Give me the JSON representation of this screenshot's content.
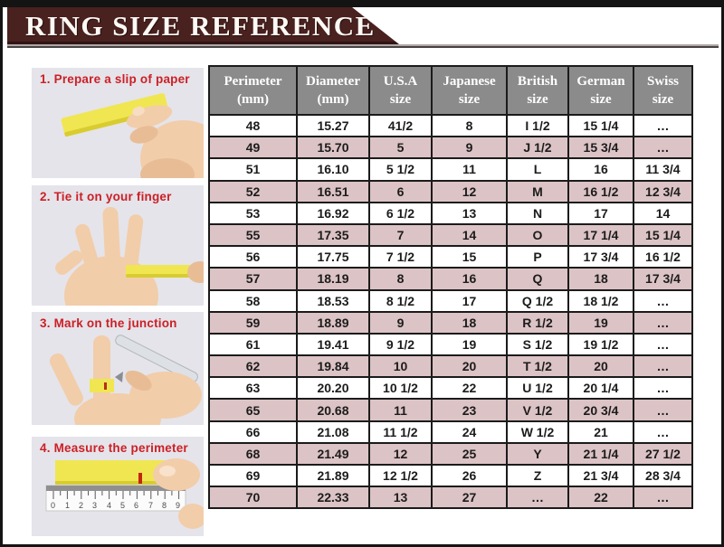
{
  "title": "RING SIZE REFERENCE",
  "steps": [
    {
      "label": "1. Prepare a slip of paper"
    },
    {
      "label": "2. Tie it on your finger"
    },
    {
      "label": "3. Mark on the junction"
    },
    {
      "label": "4. Measure the perimeter",
      "ruler_numbers": [
        "0",
        "1",
        "2",
        "3",
        "4",
        "5",
        "6",
        "7",
        "8",
        "9"
      ]
    }
  ],
  "table": {
    "headers": [
      {
        "line1": "Perimeter",
        "line2": "(mm)"
      },
      {
        "line1": "Diameter",
        "line2": "(mm)"
      },
      {
        "line1": "U.S.A",
        "line2": "size"
      },
      {
        "line1": "Japanese",
        "line2": "size"
      },
      {
        "line1": "British",
        "line2": "size"
      },
      {
        "line1": "German",
        "line2": "size"
      },
      {
        "line1": "Swiss",
        "line2": "size"
      }
    ],
    "rows": [
      [
        "48",
        "15.27",
        "41/2",
        "8",
        "I 1/2",
        "15 1/4",
        "…"
      ],
      [
        "49",
        "15.70",
        "5",
        "9",
        "J 1/2",
        "15 3/4",
        "…"
      ],
      [
        "51",
        "16.10",
        "5 1/2",
        "11",
        "L",
        "16",
        "11 3/4"
      ],
      [
        "52",
        "16.51",
        "6",
        "12",
        "M",
        "16 1/2",
        "12 3/4"
      ],
      [
        "53",
        "16.92",
        "6 1/2",
        "13",
        "N",
        "17",
        "14"
      ],
      [
        "55",
        "17.35",
        "7",
        "14",
        "O",
        "17 1/4",
        "15 1/4"
      ],
      [
        "56",
        "17.75",
        "7 1/2",
        "15",
        "P",
        "17 3/4",
        "16 1/2"
      ],
      [
        "57",
        "18.19",
        "8",
        "16",
        "Q",
        "18",
        "17 3/4"
      ],
      [
        "58",
        "18.53",
        "8 1/2",
        "17",
        "Q 1/2",
        "18 1/2",
        "…"
      ],
      [
        "59",
        "18.89",
        "9",
        "18",
        "R 1/2",
        "19",
        "…"
      ],
      [
        "61",
        "19.41",
        "9 1/2",
        "19",
        "S 1/2",
        "19 1/2",
        "…"
      ],
      [
        "62",
        "19.84",
        "10",
        "20",
        "T 1/2",
        "20",
        "…"
      ],
      [
        "63",
        "20.20",
        "10 1/2",
        "22",
        "U 1/2",
        "20 1/4",
        "…"
      ],
      [
        "65",
        "20.68",
        "11",
        "23",
        "V 1/2",
        "20 3/4",
        "…"
      ],
      [
        "66",
        "21.08",
        "11 1/2",
        "24",
        "W 1/2",
        "21",
        "…"
      ],
      [
        "68",
        "21.49",
        "12",
        "25",
        "Y",
        "21 1/4",
        "27 1/2"
      ],
      [
        "69",
        "21.89",
        "12 1/2",
        "26",
        "Z",
        "21 3/4",
        "28 3/4"
      ],
      [
        "70",
        "22.33",
        "13",
        "27",
        "…",
        "22",
        "…"
      ]
    ]
  },
  "colors": {
    "banner_maroon": "#49211f",
    "header_gray": "#8b8b8b",
    "row_pink": "#dcc3c5",
    "step_label_red": "#cb2026",
    "paper_yellow": "#f0e652",
    "skin": "#f2cdaa"
  }
}
